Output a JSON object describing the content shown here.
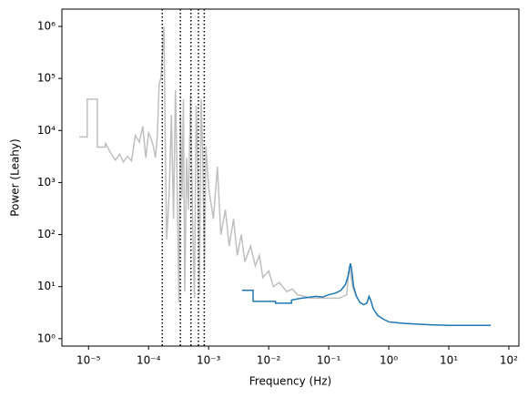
{
  "chart_data": {
    "type": "line",
    "xlabel": "Frequency (Hz)",
    "ylabel": "Power (Leahy)",
    "xscale": "log",
    "yscale": "log",
    "xlim": [
      3.6e-06,
      147
    ],
    "ylim": [
      0.72,
      2150000
    ],
    "xticks": [
      {
        "value": 1e-05,
        "label": "10⁻⁵"
      },
      {
        "value": 0.0001,
        "label": "10⁻⁴"
      },
      {
        "value": 0.001,
        "label": "10⁻³"
      },
      {
        "value": 0.01,
        "label": "10⁻²"
      },
      {
        "value": 0.1,
        "label": "10⁻¹"
      },
      {
        "value": 1,
        "label": "10⁰"
      },
      {
        "value": 10,
        "label": "10¹"
      },
      {
        "value": 100,
        "label": "10²"
      }
    ],
    "yticks": [
      {
        "value": 1,
        "label": "10⁰"
      },
      {
        "value": 10,
        "label": "10¹"
      },
      {
        "value": 100,
        "label": "10²"
      },
      {
        "value": 1000,
        "label": "10³"
      },
      {
        "value": 10000,
        "label": "10⁴"
      },
      {
        "value": 100000,
        "label": "10⁵"
      },
      {
        "value": 1000000,
        "label": "10⁶"
      }
    ],
    "vlines": [
      0.000169,
      0.000338,
      0.000507,
      0.000676,
      0.000845
    ],
    "vline_color": "#000000",
    "series": [
      {
        "color": "#bfbfbf",
        "x": [
          7e-06,
          9.5e-06,
          9.5e-06,
          1.4e-05,
          1.4e-05,
          1.9e-05,
          1.9e-05,
          2.3e-05,
          2.8e-05,
          3.3e-05,
          3.8e-05,
          4.5e-05,
          5.2e-05,
          6e-05,
          7e-05,
          8e-05,
          9e-05,
          0.0001,
          0.00011,
          0.00012,
          0.00013,
          0.00014,
          0.00015,
          0.00016,
          0.00017,
          0.00018,
          0.00019,
          0.0002,
          0.00022,
          0.00024,
          0.00026,
          0.00028,
          0.0003,
          0.00032,
          0.00034,
          0.00036,
          0.00038,
          0.0004,
          0.00043,
          0.00046,
          0.0005,
          0.00054,
          0.00058,
          0.00062,
          0.00066,
          0.0007,
          0.00075,
          0.0008,
          0.00085,
          0.0009,
          0.001,
          0.0012,
          0.0014,
          0.0016,
          0.0019,
          0.0022,
          0.0026,
          0.003,
          0.0035,
          0.004,
          0.005,
          0.006,
          0.007,
          0.008,
          0.01,
          0.012,
          0.015,
          0.02,
          0.025,
          0.03,
          0.04,
          0.05,
          0.07,
          0.1,
          0.15,
          0.2,
          0.22,
          0.25,
          0.28,
          0.3
        ],
        "values": [
          7500,
          7500,
          40000,
          40000,
          4800,
          4800,
          5800,
          3800,
          2700,
          3500,
          2500,
          3200,
          2600,
          8000,
          6000,
          12000,
          3000,
          9000,
          7000,
          5000,
          3000,
          8000,
          80000,
          100000,
          300000,
          1000000,
          5000,
          80,
          600,
          20000,
          200,
          60000,
          800,
          5,
          20000,
          500,
          40000,
          8,
          3000,
          300,
          50000,
          200,
          6,
          30000,
          2000,
          7,
          40000,
          3000,
          20,
          5000,
          800,
          200,
          2000,
          100,
          300,
          60,
          200,
          40,
          100,
          30,
          60,
          25,
          40,
          15,
          20,
          10,
          12,
          8,
          9,
          7,
          6.5,
          6,
          6,
          6,
          6,
          7,
          25,
          10,
          7,
          6
        ]
      },
      {
        "color": "#1f77b4",
        "x": [
          0.0036,
          0.0055,
          0.0055,
          0.013,
          0.013,
          0.024,
          0.024,
          0.035,
          0.045,
          0.06,
          0.08,
          0.1,
          0.13,
          0.16,
          0.19,
          0.21,
          0.23,
          0.24,
          0.26,
          0.29,
          0.33,
          0.38,
          0.43,
          0.47,
          0.5,
          0.55,
          0.65,
          0.8,
          1,
          1.5,
          2,
          3,
          5,
          10,
          20,
          50
        ],
        "values": [
          8.5,
          8.5,
          5.2,
          5.2,
          4.8,
          4.8,
          5.5,
          6,
          6.2,
          6.5,
          6.3,
          7,
          7.5,
          8.5,
          11,
          16,
          28,
          22,
          10,
          6.5,
          5,
          4.5,
          4.8,
          6.5,
          5.5,
          3.8,
          2.8,
          2.4,
          2.1,
          2,
          1.95,
          1.9,
          1.85,
          1.8,
          1.8,
          1.8
        ]
      }
    ]
  }
}
